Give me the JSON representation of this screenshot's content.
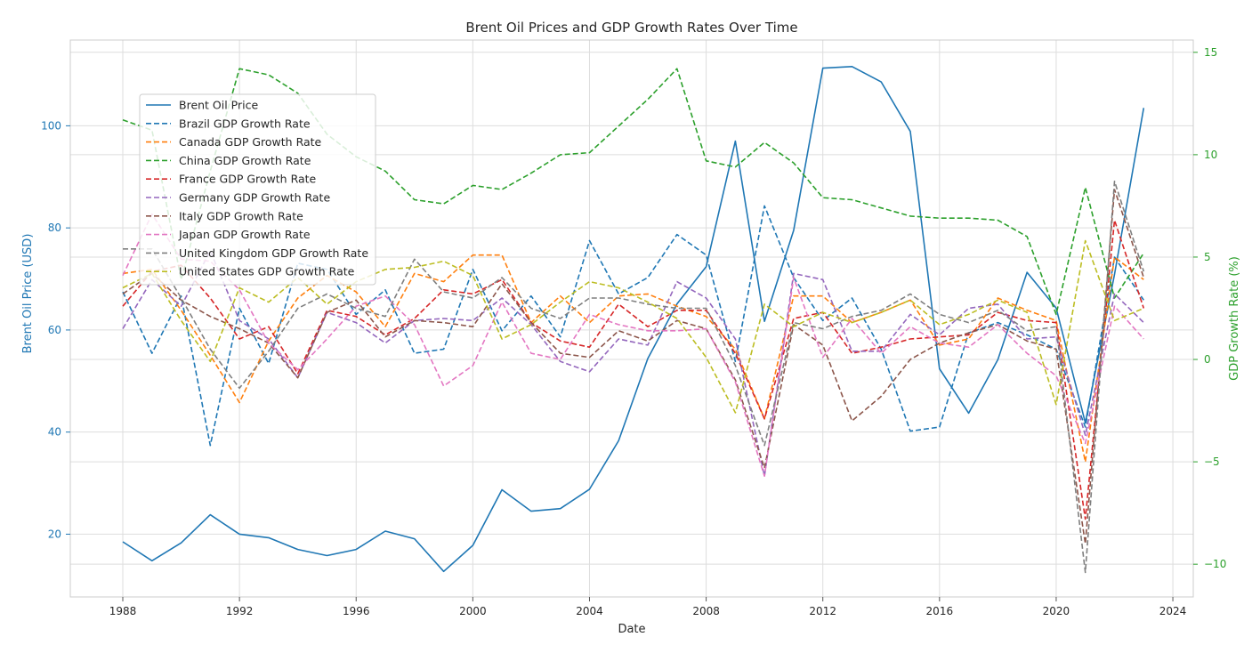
{
  "chart_data": {
    "type": "line",
    "title": "Brent Oil Prices and GDP Growth Rates Over Time",
    "xlabel": "Date",
    "ylabel_left": "Brent Oil Price (USD)",
    "ylabel_right": "GDP Growth Rate (%)",
    "x": [
      1988,
      1989,
      1990,
      1991,
      1992,
      1993,
      1994,
      1995,
      1996,
      1997,
      1998,
      1999,
      2000,
      2001,
      2002,
      2003,
      2004,
      2005,
      2006,
      2007,
      2008,
      2009,
      2010,
      2011,
      2012,
      2013,
      2014,
      2015,
      2016,
      2017,
      2018,
      2019,
      2020,
      2021,
      2022,
      2023
    ],
    "xlim": [
      1986.6,
      1987.0
    ],
    "xlim_full": [
      1986.2,
      2024.7
    ],
    "xticks": [
      1988,
      1992,
      1996,
      2000,
      2004,
      2008,
      2012,
      2016,
      2020,
      2024
    ],
    "ylim_left": [
      7.7,
      116.8
    ],
    "yticks_left": [
      20,
      40,
      60,
      80,
      100
    ],
    "ylim_right": [
      -11.6,
      15.6
    ],
    "yticks_right": [
      -10,
      -5,
      0,
      5,
      10,
      15
    ],
    "grid": true,
    "legend_position": "upper-left",
    "colors": {
      "left_axis": "#1f77b4",
      "right_axis": "#2ca02c",
      "grid": "#dddddd",
      "text": "#262626"
    },
    "series": [
      {
        "name": "Brent Oil Price",
        "axis": "left",
        "style": "solid",
        "color": "#1f77b4",
        "values": [
          18.5,
          14.8,
          18.3,
          23.8,
          20.0,
          19.3,
          17.0,
          15.8,
          17.0,
          20.6,
          19.1,
          12.7,
          17.8,
          28.7,
          24.5,
          25.0,
          28.8,
          38.3,
          54.4,
          65.1,
          72.4,
          97.0,
          61.7,
          79.5,
          111.3,
          111.6,
          108.6,
          98.9,
          52.4,
          43.7,
          54.2,
          71.3,
          64.3,
          41.8,
          70.9,
          103.5
        ]
      },
      {
        "name": "Brazil GDP Growth Rate",
        "axis": "right",
        "style": "dashed",
        "color": "#1f77b4",
        "values": [
          3.3,
          0.3,
          3.1,
          -4.2,
          2.5,
          -0.2,
          4.7,
          4.4,
          2.2,
          3.4,
          0.3,
          0.5,
          4.4,
          1.4,
          3.1,
          1.1,
          5.8,
          3.2,
          4.0,
          6.1,
          5.1,
          -0.1,
          7.5,
          4.0,
          1.9,
          3.0,
          0.5,
          -3.5,
          -3.3,
          1.3,
          1.8,
          1.2,
          0.5,
          -3.3,
          5.0,
          2.9
        ]
      },
      {
        "name": "Canada GDP Growth Rate",
        "axis": "right",
        "style": "dashed",
        "color": "#ff7f0e",
        "values": [
          4.2,
          4.4,
          2.4,
          0.2,
          -2.1,
          0.9,
          3.0,
          4.1,
          3.3,
          1.6,
          4.2,
          3.8,
          5.1,
          5.1,
          1.8,
          3.1,
          1.8,
          3.1,
          3.2,
          2.6,
          2.1,
          0.5,
          -2.9,
          3.1,
          3.1,
          1.8,
          2.3,
          2.9,
          0.7,
          1.0,
          3.0,
          2.4,
          1.9,
          -5.0,
          5.0,
          3.9
        ]
      },
      {
        "name": "China GDP Growth Rate",
        "axis": "right",
        "style": "dashed",
        "color": "#2ca02c",
        "values": [
          11.7,
          11.2,
          3.9,
          9.2,
          14.2,
          13.9,
          13.0,
          11.0,
          9.9,
          9.2,
          7.8,
          7.6,
          8.5,
          8.3,
          9.1,
          10.0,
          10.1,
          11.4,
          12.7,
          14.2,
          9.7,
          9.4,
          10.6,
          9.6,
          7.9,
          7.8,
          7.4,
          7.0,
          6.9,
          6.9,
          6.8,
          6.0,
          2.2,
          8.4,
          3.0,
          5.2
        ]
      },
      {
        "name": "France GDP Growth Rate",
        "axis": "right",
        "style": "dashed",
        "color": "#d62728",
        "values": [
          2.6,
          4.3,
          4.6,
          3.0,
          1.0,
          1.6,
          -0.7,
          2.4,
          2.1,
          1.2,
          2.0,
          3.4,
          3.2,
          3.9,
          1.8,
          0.9,
          0.6,
          2.7,
          1.6,
          2.4,
          2.4,
          0.3,
          -2.9,
          2.0,
          2.3,
          0.3,
          0.6,
          1.0,
          1.1,
          1.2,
          2.3,
          1.9,
          1.8,
          -7.8,
          6.8,
          2.5
        ]
      },
      {
        "name": "Germany GDP Growth Rate",
        "axis": "right",
        "style": "dashed",
        "color": "#9467bd",
        "values": [
          1.5,
          3.9,
          2.6,
          5.3,
          1.9,
          1.0,
          -0.9,
          2.3,
          1.8,
          0.8,
          1.9,
          2.0,
          1.9,
          3.0,
          1.7,
          -0.1,
          -0.6,
          1.0,
          0.7,
          3.8,
          3.0,
          1.0,
          -5.7,
          4.2,
          3.9,
          0.4,
          0.4,
          2.2,
          1.2,
          2.5,
          2.7,
          1.0,
          1.1,
          -3.7,
          3.2,
          1.8
        ]
      },
      {
        "name": "Italy GDP Growth Rate",
        "axis": "right",
        "style": "dashed",
        "color": "#8c564b",
        "values": [
          3.2,
          4.2,
          2.9,
          2.1,
          1.5,
          0.8,
          -0.9,
          2.3,
          2.9,
          1.1,
          1.9,
          1.8,
          1.6,
          3.7,
          1.8,
          0.3,
          0.1,
          1.4,
          0.9,
          1.9,
          1.5,
          -1.0,
          -5.3,
          1.7,
          0.7,
          -3.0,
          -1.8,
          0.0,
          0.8,
          1.3,
          1.7,
          0.9,
          0.5,
          -9.0,
          8.3,
          4.0
        ]
      },
      {
        "name": "Japan GDP Growth Rate",
        "axis": "right",
        "style": "dashed",
        "color": "#e377c2",
        "values": [
          4.1,
          7.1,
          4.9,
          4.8,
          3.4,
          0.8,
          -0.5,
          1.0,
          2.6,
          3.1,
          1.7,
          -1.3,
          -0.3,
          2.8,
          0.3,
          0.0,
          2.2,
          1.7,
          1.4,
          1.4,
          1.5,
          -1.1,
          -5.7,
          4.0,
          0.1,
          2.0,
          0.3,
          1.6,
          0.8,
          0.6,
          1.7,
          0.3,
          -0.8,
          -4.1,
          2.6,
          1.0
        ]
      },
      {
        "name": "United Kingdom GDP Growth Rate",
        "axis": "right",
        "style": "dashed",
        "color": "#7f7f7f",
        "values": [
          5.4,
          5.4,
          3.0,
          0.5,
          -1.4,
          0.4,
          2.5,
          3.2,
          2.5,
          2.1,
          4.9,
          3.3,
          3.0,
          4.0,
          2.5,
          2.0,
          3.0,
          3.0,
          2.7,
          2.5,
          2.5,
          -0.3,
          -4.2,
          1.8,
          1.5,
          2.1,
          2.4,
          3.2,
          2.2,
          1.8,
          2.4,
          1.4,
          1.6,
          -10.4,
          8.7,
          4.3
        ]
      },
      {
        "name": "United States GDP Growth Rate",
        "axis": "right",
        "style": "dashed",
        "color": "#bcbd22",
        "values": [
          3.5,
          4.2,
          1.9,
          -0.1,
          3.5,
          2.8,
          4.0,
          2.7,
          3.8,
          4.4,
          4.5,
          4.8,
          4.1,
          1.0,
          1.7,
          2.8,
          3.8,
          3.5,
          2.8,
          2.0,
          0.1,
          -2.6,
          2.7,
          1.6,
          2.3,
          1.8,
          2.3,
          2.9,
          1.7,
          2.2,
          2.9,
          2.3,
          -2.2,
          5.8,
          1.9,
          2.5
        ]
      }
    ]
  }
}
